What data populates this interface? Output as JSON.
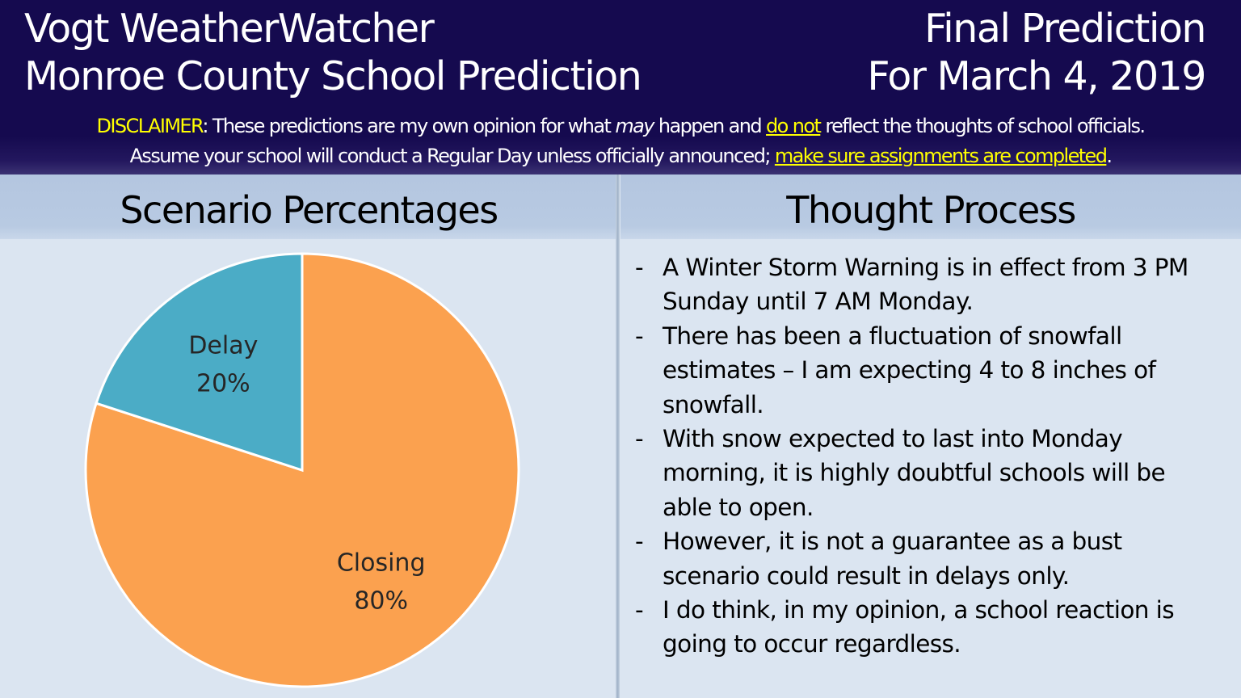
{
  "header": {
    "title_line1": "Vogt WeatherWatcher",
    "title_line2": "Monroe County School Prediction",
    "right_line1": "Final Prediction",
    "right_line2": "For March 4, 2019",
    "background": "#150a4f"
  },
  "disclaimer": {
    "label": "DISCLAIMER",
    "line1_a": ": These predictions are my own opinion for what ",
    "line1_em": "may",
    "line1_b": " happen and ",
    "line1_link": "do not",
    "line1_c": " reflect the thoughts of school officials.",
    "line2_a": "Assume your school will conduct a Regular Day unless officially announced; ",
    "line2_link": "make sure assignments are completed",
    "line2_b": ".",
    "highlight_color": "#ffff00"
  },
  "left_panel": {
    "title": "Scenario Percentages"
  },
  "right_panel": {
    "title": "Thought Process",
    "bullets": [
      "A Winter Storm Warning is in effect from 3 PM Sunday until 7 AM Monday.",
      "There has been a fluctuation of snowfall estimates – I am expecting 4 to 8 inches of snowfall.",
      "With snow expected to last into Monday morning, it is highly doubtful schools will be able to open.",
      "However, it is not a guarantee as a bust scenario could result in delays only.",
      "I do think, in my opinion, a school reaction is going to occur regardless."
    ],
    "bullet_marker": "-"
  },
  "chart_data": {
    "type": "pie",
    "title": "Scenario Percentages",
    "categories": [
      "Closing",
      "Delay"
    ],
    "values": [
      80,
      20
    ],
    "labels": [
      "80%",
      "20%"
    ],
    "colors": [
      "#fba14f",
      "#4bacc6"
    ]
  }
}
